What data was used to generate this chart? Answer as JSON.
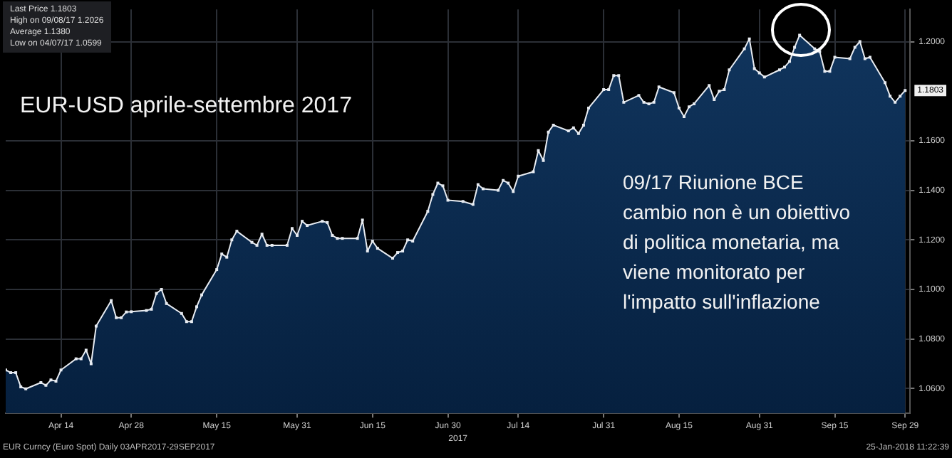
{
  "chart_data": {
    "type": "area",
    "title": "EUR-USD aprile-settembre 2017",
    "xlabel": "2017",
    "x": [
      "2017-04-03",
      "2017-04-04",
      "2017-04-05",
      "2017-04-06",
      "2017-04-07",
      "2017-04-10",
      "2017-04-11",
      "2017-04-12",
      "2017-04-13",
      "2017-04-14",
      "2017-04-17",
      "2017-04-18",
      "2017-04-19",
      "2017-04-20",
      "2017-04-21",
      "2017-04-24",
      "2017-04-25",
      "2017-04-26",
      "2017-04-27",
      "2017-04-28",
      "2017-05-01",
      "2017-05-02",
      "2017-05-03",
      "2017-05-04",
      "2017-05-05",
      "2017-05-08",
      "2017-05-09",
      "2017-05-10",
      "2017-05-11",
      "2017-05-12",
      "2017-05-15",
      "2017-05-16",
      "2017-05-17",
      "2017-05-18",
      "2017-05-19",
      "2017-05-22",
      "2017-05-23",
      "2017-05-24",
      "2017-05-25",
      "2017-05-26",
      "2017-05-29",
      "2017-05-30",
      "2017-05-31",
      "2017-06-01",
      "2017-06-02",
      "2017-06-05",
      "2017-06-06",
      "2017-06-07",
      "2017-06-08",
      "2017-06-09",
      "2017-06-12",
      "2017-06-13",
      "2017-06-14",
      "2017-06-15",
      "2017-06-16",
      "2017-06-19",
      "2017-06-20",
      "2017-06-21",
      "2017-06-22",
      "2017-06-23",
      "2017-06-26",
      "2017-06-27",
      "2017-06-28",
      "2017-06-29",
      "2017-06-30",
      "2017-07-03",
      "2017-07-05",
      "2017-07-06",
      "2017-07-07",
      "2017-07-10",
      "2017-07-11",
      "2017-07-12",
      "2017-07-13",
      "2017-07-14",
      "2017-07-17",
      "2017-07-18",
      "2017-07-19",
      "2017-07-20",
      "2017-07-21",
      "2017-07-24",
      "2017-07-25",
      "2017-07-26",
      "2017-07-27",
      "2017-07-28",
      "2017-07-31",
      "2017-08-01",
      "2017-08-02",
      "2017-08-03",
      "2017-08-04",
      "2017-08-07",
      "2017-08-08",
      "2017-08-09",
      "2017-08-10",
      "2017-08-11",
      "2017-08-14",
      "2017-08-15",
      "2017-08-16",
      "2017-08-17",
      "2017-08-18",
      "2017-08-21",
      "2017-08-22",
      "2017-08-23",
      "2017-08-24",
      "2017-08-25",
      "2017-08-28",
      "2017-08-29",
      "2017-08-30",
      "2017-08-31",
      "2017-09-01",
      "2017-09-04",
      "2017-09-05",
      "2017-09-06",
      "2017-09-07",
      "2017-09-08",
      "2017-09-11",
      "2017-09-12",
      "2017-09-13",
      "2017-09-14",
      "2017-09-15",
      "2017-09-18",
      "2017-09-19",
      "2017-09-20",
      "2017-09-21",
      "2017-09-22",
      "2017-09-25",
      "2017-09-26",
      "2017-09-27",
      "2017-09-28",
      "2017-09-29"
    ],
    "series": [
      {
        "color": "#e8ecf2",
        "values": [
          1.0675,
          1.0664,
          1.0664,
          1.0607,
          1.0599,
          1.0624,
          1.0613,
          1.0635,
          1.063,
          1.0675,
          1.072,
          1.072,
          1.0755,
          1.07,
          1.0852,
          1.0955,
          1.0886,
          1.0886,
          1.0909,
          1.091,
          1.0915,
          1.092,
          1.0984,
          1.1,
          1.0943,
          1.0903,
          1.087,
          1.087,
          1.093,
          1.0978,
          1.108,
          1.1143,
          1.113,
          1.12,
          1.1235,
          1.119,
          1.1178,
          1.1223,
          1.1178,
          1.1178,
          1.1178,
          1.1246,
          1.1218,
          1.1275,
          1.1258,
          1.1275,
          1.127,
          1.1218,
          1.1206,
          1.1206,
          1.1206,
          1.128,
          1.1155,
          1.1195,
          1.1166,
          1.1126,
          1.1149,
          1.1155,
          1.12,
          1.1195,
          1.1315,
          1.1383,
          1.1429,
          1.1418,
          1.136,
          1.1355,
          1.1343,
          1.1423,
          1.1406,
          1.14,
          1.144,
          1.1429,
          1.1395,
          1.1457,
          1.1475,
          1.156,
          1.152,
          1.1635,
          1.1663,
          1.164,
          1.1652,
          1.1629,
          1.1663,
          1.1732,
          1.1806,
          1.1806,
          1.1863,
          1.1863,
          1.1755,
          1.1783,
          1.1755,
          1.1749,
          1.1755,
          1.1817,
          1.1794,
          1.1732,
          1.1697,
          1.1737,
          1.1749,
          1.1823,
          1.1766,
          1.18,
          1.1806,
          1.1886,
          1.1971,
          1.2011,
          1.1891,
          1.1874,
          1.1857,
          1.1886,
          1.1897,
          1.192,
          1.1977,
          1.2026,
          1.1971,
          1.196,
          1.188,
          1.188,
          1.1937,
          1.1931,
          1.1977,
          1.2,
          1.1931,
          1.1937,
          1.1834,
          1.178,
          1.1755,
          1.178,
          1.1803
        ]
      }
    ],
    "xlim": [
      "2017-04-03",
      "2017-09-30"
    ],
    "xticks": [
      {
        "value": "2017-04-14",
        "label": "Apr 14"
      },
      {
        "value": "2017-04-28",
        "label": "Apr 28"
      },
      {
        "value": "2017-05-15",
        "label": "May 15"
      },
      {
        "value": "2017-05-31",
        "label": "May 31"
      },
      {
        "value": "2017-06-15",
        "label": "Jun 15"
      },
      {
        "value": "2017-06-30",
        "label": "Jun 30"
      },
      {
        "value": "2017-07-14",
        "label": "Jul 14"
      },
      {
        "value": "2017-07-31",
        "label": "Jul 31"
      },
      {
        "value": "2017-08-15",
        "label": "Aug 15"
      },
      {
        "value": "2017-08-31",
        "label": "Aug 31"
      },
      {
        "value": "2017-09-15",
        "label": "Sep 15"
      },
      {
        "value": "2017-09-29",
        "label": "Sep 29"
      }
    ],
    "ylim": [
      1.05,
      1.213
    ],
    "yticks": [
      {
        "value": 1.06,
        "label": "1.0600"
      },
      {
        "value": 1.08,
        "label": "1.0800"
      },
      {
        "value": 1.1,
        "label": "1.1000"
      },
      {
        "value": 1.12,
        "label": "1.1200"
      },
      {
        "value": 1.14,
        "label": "1.1400"
      },
      {
        "value": 1.16,
        "label": "1.1600"
      },
      {
        "value": 1.2,
        "label": "1.2000"
      }
    ],
    "grid": true,
    "marker": "square",
    "line_style": "solid",
    "annotations": [
      "Last Price 1.1803",
      "High on 09/08/17 1.2026",
      "Average 1.1380",
      "Low on 04/07/17 1.0599",
      "09/17 Riunione BCE cambio non è un obiettivo di politica monetaria, ma viene monitorato per l'impatto sull'inflazione",
      "EUR Curncy (Euro Spot)  Daily 03APR2017-29SEP2017",
      "25-Jan-2018 11:22:39",
      {
        "text": "1.1803",
        "x": "2017-09-29",
        "y": 1.1803
      }
    ]
  }
}
